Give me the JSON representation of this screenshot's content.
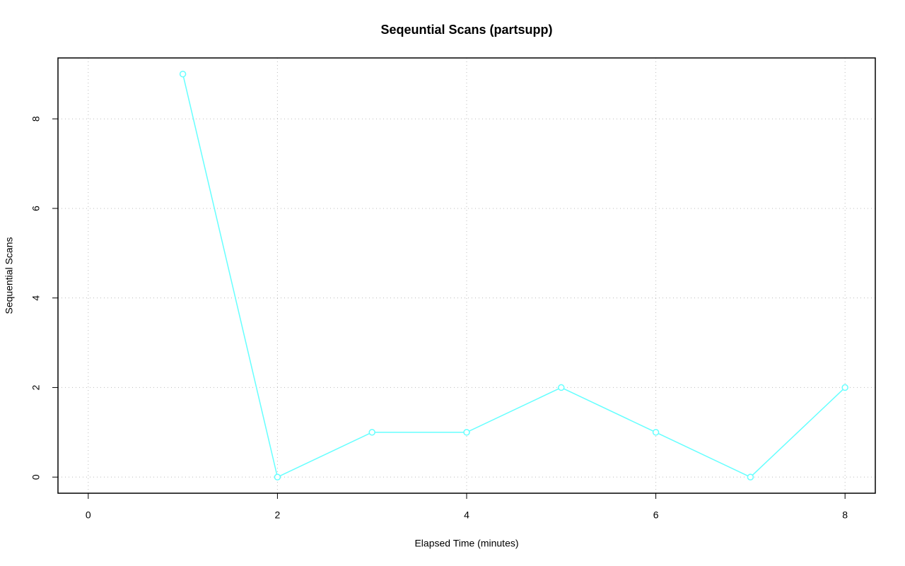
{
  "chart_data": {
    "type": "line",
    "title": "Seqeuntial Scans (partsupp)",
    "x_label": "Elapsed Time (minutes)",
    "y_label": "Sequential Scans",
    "x": [
      1,
      2,
      3,
      4,
      5,
      6,
      7,
      8
    ],
    "series": [
      {
        "name": "partsupp",
        "color": "#66ffff",
        "values": [
          9,
          0,
          1,
          1,
          2,
          1,
          0,
          2
        ]
      }
    ],
    "xlim": [
      -0.32,
      8.32
    ],
    "ylim": [
      -0.36,
      9.36
    ],
    "xticks": [
      0,
      2,
      4,
      6,
      8
    ],
    "yticks": [
      0,
      2,
      4,
      6,
      8
    ],
    "grid": true
  }
}
